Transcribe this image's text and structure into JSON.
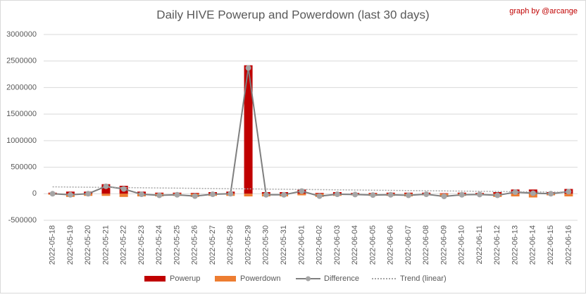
{
  "chart_data": {
    "type": "combo",
    "title": "Daily HIVE Powerup and Powerdown (last 30 days)",
    "annotation": "graph by @arcange",
    "categories": [
      "2022-05-18",
      "2022-05-19",
      "2022-05-20",
      "2022-05-21",
      "2022-05-22",
      "2022-05-23",
      "2022-05-24",
      "2022-05-25",
      "2022-05-26",
      "2022-05-27",
      "2022-05-28",
      "2022-05-29",
      "2022-05-30",
      "2022-05-31",
      "2022-06-01",
      "2022-06-02",
      "2022-06-03",
      "2022-06-04",
      "2022-06-05",
      "2022-06-06",
      "2022-06-07",
      "2022-06-08",
      "2022-06-09",
      "2022-06-10",
      "2022-06-11",
      "2022-06-12",
      "2022-06-13",
      "2022-06-14",
      "2022-06-15",
      "2022-06-16"
    ],
    "series": [
      {
        "name": "Powerup",
        "type": "bar",
        "color": "#c00000",
        "values": [
          20000,
          40000,
          40000,
          180000,
          150000,
          40000,
          20000,
          20000,
          15000,
          30000,
          40000,
          2420000,
          30000,
          30000,
          80000,
          15000,
          30000,
          15000,
          15000,
          20000,
          20000,
          20000,
          10000,
          20000,
          15000,
          30000,
          80000,
          80000,
          30000,
          90000
        ]
      },
      {
        "name": "Powerdown",
        "type": "bar",
        "color": "#ed7d31",
        "values": [
          -20000,
          -60000,
          -40000,
          -40000,
          -60000,
          -50000,
          -50000,
          -40000,
          -60000,
          -40000,
          -40000,
          -50000,
          -50000,
          -50000,
          -30000,
          -60000,
          -40000,
          -30000,
          -40000,
          -40000,
          -50000,
          -30000,
          -60000,
          -40000,
          -30000,
          -60000,
          -50000,
          -70000,
          -30000,
          -50000
        ]
      },
      {
        "name": "Difference",
        "type": "line",
        "color": "#7f7f7f",
        "marker_color": "#a5a5a5",
        "markers": true,
        "values": [
          0,
          -20000,
          0,
          140000,
          90000,
          -10000,
          -30000,
          -20000,
          -45000,
          -10000,
          0,
          2370000,
          -20000,
          -20000,
          50000,
          -45000,
          -10000,
          -15000,
          -25000,
          -20000,
          -30000,
          -10000,
          -50000,
          -20000,
          -15000,
          -30000,
          30000,
          10000,
          0,
          40000
        ]
      },
      {
        "name": "Trend (linear)",
        "type": "line",
        "color": "#a5a5a5",
        "line_style": "dotted",
        "values": [
          130000,
          126500,
          123000,
          119500,
          116000,
          112500,
          109000,
          105500,
          102000,
          98500,
          95000,
          91500,
          88000,
          84500,
          81000,
          77500,
          74000,
          70500,
          67000,
          63500,
          60000,
          56500,
          53000,
          49500,
          46000,
          42500,
          39000,
          35500,
          32000,
          28500
        ]
      }
    ],
    "ylim": [
      -500000,
      3000000
    ],
    "yticks": [
      -500000,
      0,
      500000,
      1000000,
      1500000,
      2000000,
      2500000,
      3000000
    ],
    "grid": true
  }
}
